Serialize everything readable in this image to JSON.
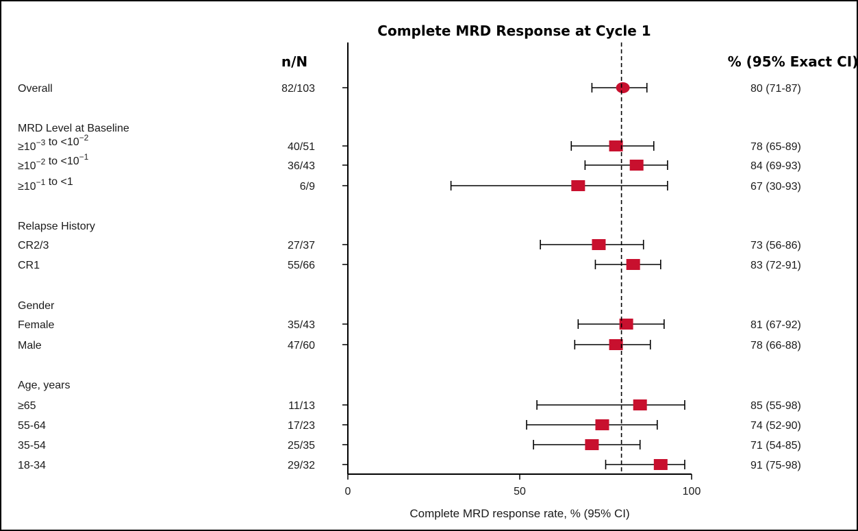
{
  "chart_data": {
    "type": "forest",
    "title": "Complete MRD Response at Cycle 1",
    "count_header": "n/N",
    "estimate_header": "% (95% Exact CI)",
    "xlabel": "Complete MRD response rate, % (95% CI)",
    "xlim": [
      0,
      100
    ],
    "xticks": [
      "0",
      "50",
      "100"
    ],
    "reference_line": 79.6,
    "marker_color": "#c8102e",
    "rows": [
      {
        "kind": "data",
        "label": "Overall",
        "count": "82/103",
        "estimate": 80,
        "low": 71,
        "high": 87,
        "ci_text": "80 (71-87)",
        "marker": "circle"
      },
      {
        "kind": "header",
        "label": "MRD Level at Baseline"
      },
      {
        "kind": "data",
        "label": "≥10⁻³ to <10⁻²",
        "count": "40/51",
        "estimate": 78,
        "low": 65,
        "high": 89,
        "ci_text": "78 (65-89)",
        "marker": "square"
      },
      {
        "kind": "data",
        "label": "≥10⁻² to <10⁻¹",
        "count": "36/43",
        "estimate": 84,
        "low": 69,
        "high": 93,
        "ci_text": "84 (69-93)",
        "marker": "square"
      },
      {
        "kind": "data",
        "label": "≥10⁻¹ to <1",
        "count": "6/9",
        "estimate": 67,
        "low": 30,
        "high": 93,
        "ci_text": "67 (30-93)",
        "marker": "square"
      },
      {
        "kind": "header",
        "label": "Relapse History"
      },
      {
        "kind": "data",
        "label": "CR2/3",
        "count": "27/37",
        "estimate": 73,
        "low": 56,
        "high": 86,
        "ci_text": "73 (56-86)",
        "marker": "square"
      },
      {
        "kind": "data",
        "label": "CR1",
        "count": "55/66",
        "estimate": 83,
        "low": 72,
        "high": 91,
        "ci_text": "83 (72-91)",
        "marker": "square"
      },
      {
        "kind": "header",
        "label": "Gender"
      },
      {
        "kind": "data",
        "label": "Female",
        "count": "35/43",
        "estimate": 81,
        "low": 67,
        "high": 92,
        "ci_text": "81 (67-92)",
        "marker": "square"
      },
      {
        "kind": "data",
        "label": "Male",
        "count": "47/60",
        "estimate": 78,
        "low": 66,
        "high": 88,
        "ci_text": "78 (66-88)",
        "marker": "square"
      },
      {
        "kind": "header",
        "label": "Age, years"
      },
      {
        "kind": "data",
        "label": "≥65",
        "count": "11/13",
        "estimate": 85,
        "low": 55,
        "high": 98,
        "ci_text": "85 (55-98)",
        "marker": "square"
      },
      {
        "kind": "data",
        "label": "55-64",
        "count": "17/23",
        "estimate": 74,
        "low": 52,
        "high": 90,
        "ci_text": "74 (52-90)",
        "marker": "square"
      },
      {
        "kind": "data",
        "label": "35-54",
        "count": "25/35",
        "estimate": 71,
        "low": 54,
        "high": 85,
        "ci_text": "71 (54-85)",
        "marker": "square"
      },
      {
        "kind": "data",
        "label": "18-34",
        "count": "29/32",
        "estimate": 91,
        "low": 75,
        "high": 98,
        "ci_text": "91 (75-98)",
        "marker": "square"
      }
    ]
  }
}
